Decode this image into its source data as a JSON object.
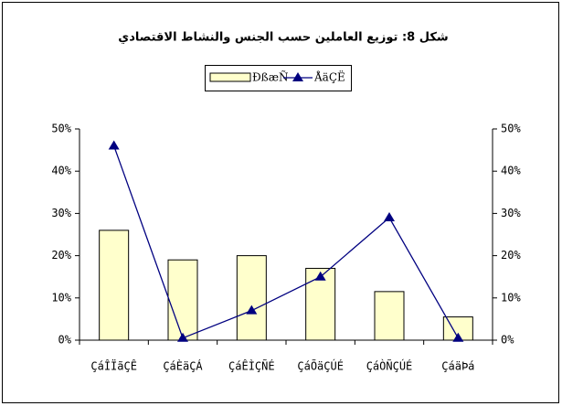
{
  "chart_data": {
    "type": "bar_line",
    "title": "شكل 8: توزيع العاملين حسب الجنس والنشاط الاقتصادي",
    "categories": [
      "ÇáÎÏãÇÊ",
      "ÇáÈäÇÁ",
      "ÇáÊÌÇÑÉ",
      "ÇáÕäÇÚÉ",
      "ÇáÒÑÇÚÉ",
      "ÇáäÞá"
    ],
    "series": [
      {
        "name": "ÐßæÑ",
        "type": "bar",
        "color": "#ffffcc",
        "values": [
          26,
          19,
          20,
          17,
          11.5,
          5.5
        ]
      },
      {
        "name": "ÅäÇË",
        "type": "line",
        "axis": "y2",
        "color": "#000080",
        "values": [
          46,
          0.5,
          7,
          15,
          29,
          0.5
        ]
      }
    ],
    "ylim": [
      0,
      50
    ],
    "yticks": [
      {
        "value": 0,
        "label": "0%"
      },
      {
        "value": 10,
        "label": "10%"
      },
      {
        "value": 20,
        "label": "20%"
      },
      {
        "value": 30,
        "label": "30%"
      },
      {
        "value": 40,
        "label": "40%"
      },
      {
        "value": 50,
        "label": "50%"
      }
    ],
    "y2lim": [
      0,
      50
    ],
    "y2ticks": [
      {
        "value": 0,
        "label": "0%"
      },
      {
        "value": 10,
        "label": "10%"
      },
      {
        "value": 20,
        "label": "20%"
      },
      {
        "value": 30,
        "label": "30%"
      },
      {
        "value": 40,
        "label": "40%"
      },
      {
        "value": 50,
        "label": "50%"
      }
    ],
    "legend": "top"
  }
}
